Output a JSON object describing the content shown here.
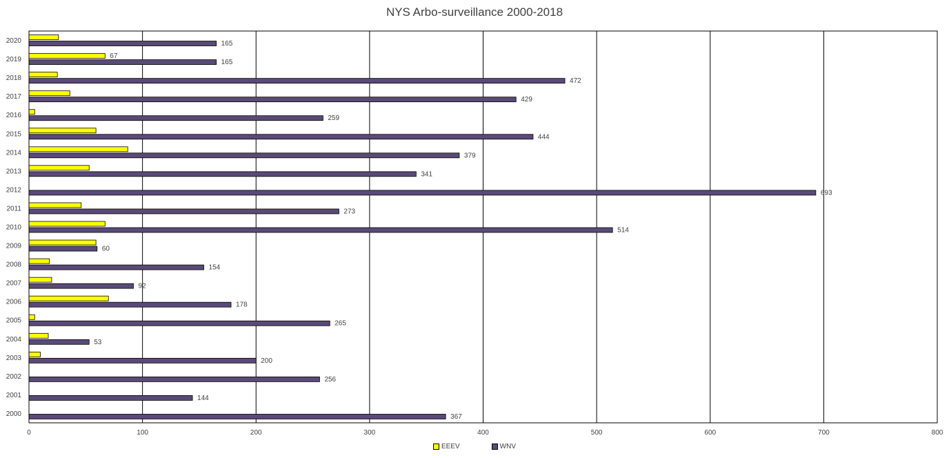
{
  "chart_data": {
    "type": "bar",
    "orientation": "horizontal",
    "title": "NYS Arbo-surveillance 2000-2018",
    "categories": [
      "2000",
      "2001",
      "2002",
      "2003",
      "2004",
      "2005",
      "2006",
      "2007",
      "2008",
      "2009",
      "2010",
      "2011",
      "2012",
      "2013",
      "2014",
      "2015",
      "2016",
      "2017",
      "2018",
      "2019",
      "2020"
    ],
    "series": [
      {
        "name": "EEEV",
        "color": "#ffff00",
        "values": [
          0,
          0,
          0,
          10,
          17,
          5,
          70,
          20,
          18,
          59,
          67,
          46,
          0,
          53,
          87,
          59,
          5,
          36,
          25,
          67,
          26
        ],
        "labels": [
          "",
          "",
          "",
          "",
          "",
          "",
          "",
          "",
          "",
          "",
          "",
          "",
          "",
          "",
          "",
          "",
          "",
          "",
          "",
          "67",
          ""
        ]
      },
      {
        "name": "WNV",
        "color": "#5a4a78",
        "values": [
          367,
          144,
          256,
          200,
          53,
          265,
          178,
          92,
          154,
          60,
          514,
          273,
          693,
          341,
          379,
          444,
          259,
          429,
          472,
          165,
          165
        ],
        "labels": [
          "367",
          "144",
          "256",
          "200",
          "53",
          "265",
          "178",
          "92",
          "154",
          "60",
          "514",
          "273",
          "693",
          "341",
          "379",
          "444",
          "259",
          "429",
          "472",
          "165",
          "165"
        ]
      }
    ],
    "xlim": [
      0,
      800
    ],
    "xticks": [
      "0",
      "100",
      "200",
      "300",
      "400",
      "500",
      "600",
      "700",
      "800"
    ],
    "grid": "vertical",
    "legend": "bottom-center"
  }
}
